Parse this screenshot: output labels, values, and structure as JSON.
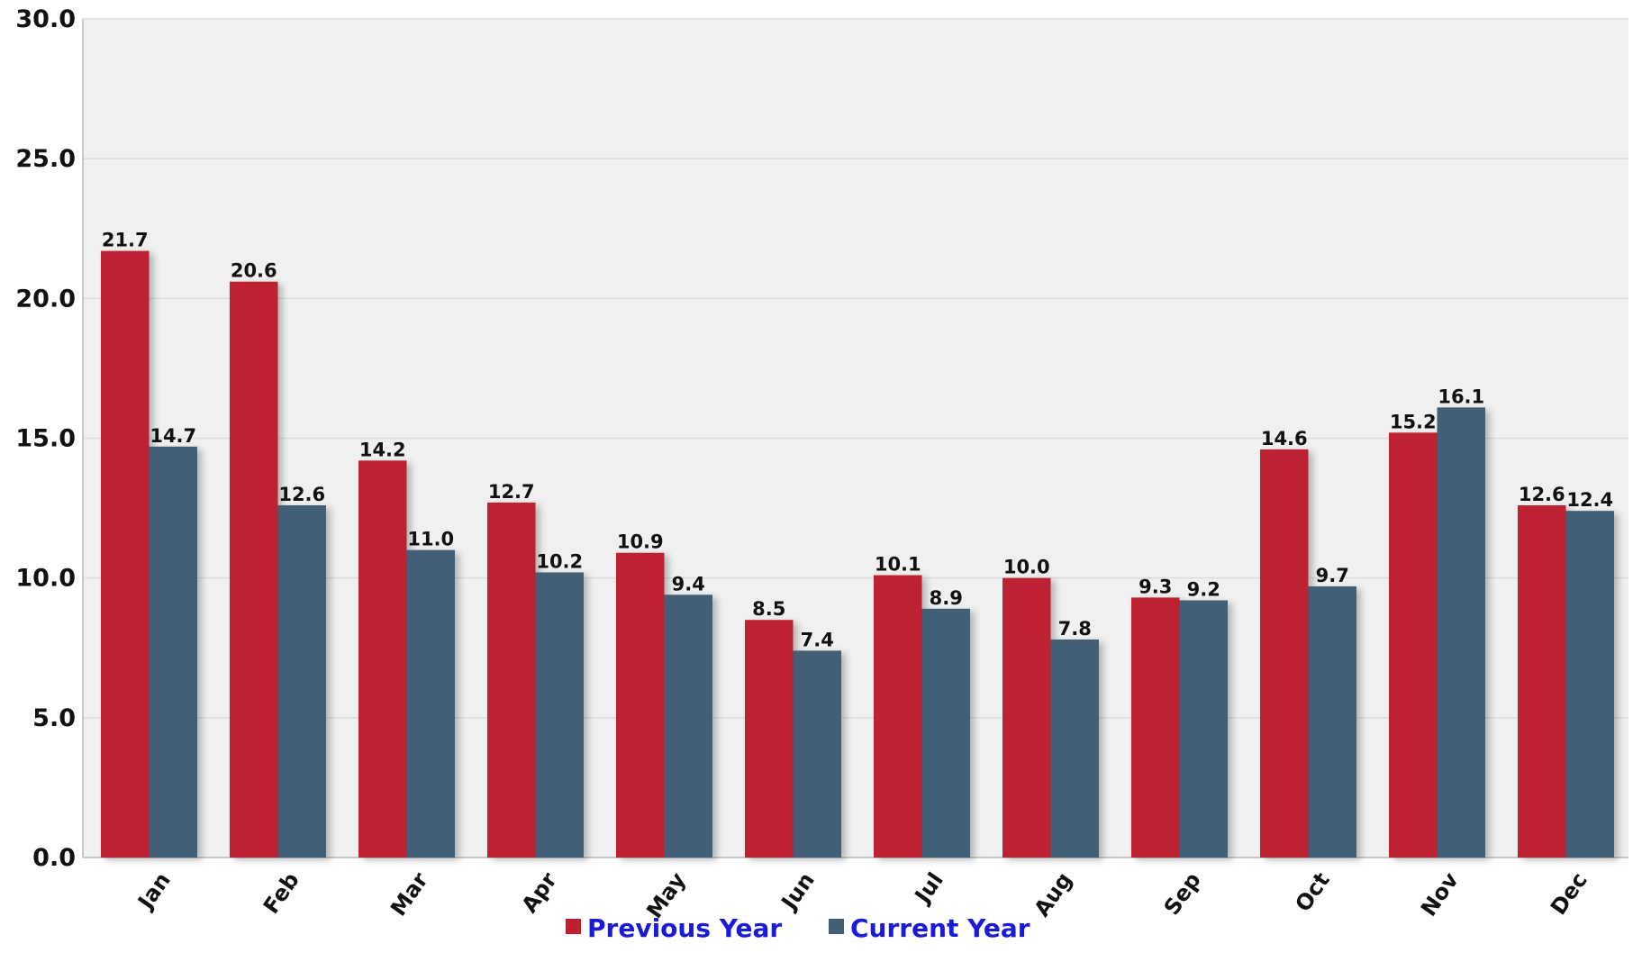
{
  "chart_data": {
    "type": "bar",
    "categories": [
      "Jan",
      "Feb",
      "Mar",
      "Apr",
      "May",
      "Jun",
      "Jul",
      "Aug",
      "Sep",
      "Oct",
      "Nov",
      "Dec"
    ],
    "series": [
      {
        "name": "Previous Year",
        "color": "#bd2131",
        "values": [
          21.7,
          20.6,
          14.2,
          12.7,
          10.9,
          8.5,
          10.1,
          10.0,
          9.3,
          14.6,
          15.2,
          12.6
        ]
      },
      {
        "name": "Current Year",
        "color": "#425f74",
        "values": [
          14.7,
          12.6,
          11.0,
          10.2,
          9.4,
          7.4,
          8.9,
          7.8,
          9.2,
          9.7,
          16.1,
          12.4
        ]
      }
    ],
    "ylim": [
      0,
      30
    ],
    "yticks": [
      "0.0",
      "5.0",
      "10.0",
      "15.0",
      "20.0",
      "25.0",
      "30.0"
    ],
    "value_format_decimals": 1,
    "grid": true,
    "legend_position": "bottom-center",
    "plot_background": "#f0f0f0",
    "legend_text_color": "#1a1adb"
  }
}
